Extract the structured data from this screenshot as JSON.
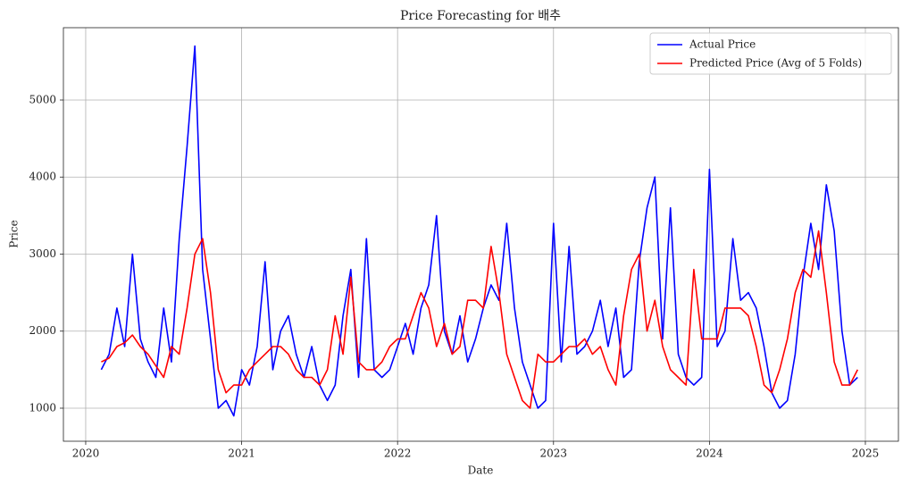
{
  "chart_data": {
    "type": "line",
    "title": "Price Forecasting for 배추",
    "x_label": "Date",
    "y_label": "Price",
    "x": [
      2020.1,
      2020.15,
      2020.2,
      2020.25,
      2020.3,
      2020.35,
      2020.4,
      2020.45,
      2020.5,
      2020.55,
      2020.6,
      2020.65,
      2020.7,
      2020.75,
      2020.8,
      2020.85,
      2020.9,
      2020.95,
      2021.0,
      2021.05,
      2021.1,
      2021.15,
      2021.2,
      2021.25,
      2021.3,
      2021.35,
      2021.4,
      2021.45,
      2021.5,
      2021.55,
      2021.6,
      2021.65,
      2021.7,
      2021.75,
      2021.8,
      2021.85,
      2021.9,
      2021.95,
      2022.0,
      2022.05,
      2022.1,
      2022.15,
      2022.2,
      2022.25,
      2022.3,
      2022.35,
      2022.4,
      2022.45,
      2022.5,
      2022.55,
      2022.6,
      2022.65,
      2022.7,
      2022.75,
      2022.8,
      2022.85,
      2022.9,
      2022.95,
      2023.0,
      2023.05,
      2023.1,
      2023.15,
      2023.2,
      2023.25,
      2023.3,
      2023.35,
      2023.4,
      2023.45,
      2023.5,
      2023.55,
      2023.6,
      2023.65,
      2023.7,
      2023.75,
      2023.8,
      2023.85,
      2023.9,
      2023.95,
      2024.0,
      2024.05,
      2024.1,
      2024.15,
      2024.2,
      2024.25,
      2024.3,
      2024.35,
      2024.4,
      2024.45,
      2024.5,
      2024.55,
      2024.6,
      2024.65,
      2024.7,
      2024.75,
      2024.8,
      2024.85,
      2024.9,
      2024.95
    ],
    "series": [
      {
        "name": "Actual Price",
        "color": "#0000ff",
        "values": [
          1500,
          1700,
          2300,
          1800,
          3000,
          1900,
          1600,
          1400,
          2300,
          1600,
          3200,
          4400,
          5700,
          2800,
          1900,
          1000,
          1100,
          900,
          1500,
          1300,
          1800,
          2900,
          1500,
          2000,
          2200,
          1700,
          1400,
          1800,
          1300,
          1100,
          1300,
          2200,
          2800,
          1400,
          3200,
          1500,
          1400,
          1500,
          1800,
          2100,
          1700,
          2300,
          2600,
          3500,
          2000,
          1700,
          2200,
          1600,
          1900,
          2300,
          2600,
          2400,
          3400,
          2300,
          1600,
          1300,
          1000,
          1100,
          3400,
          1600,
          3100,
          1700,
          1800,
          2000,
          2400,
          1800,
          2300,
          1400,
          1500,
          2900,
          3600,
          4000,
          1900,
          3600,
          1700,
          1400,
          1300,
          1400,
          4100,
          1800,
          2000,
          3200,
          2400,
          2500,
          2300,
          1800,
          1200,
          1000,
          1100,
          1700,
          2700,
          3400,
          2800,
          3900,
          3300,
          2000,
          1300,
          1400
        ]
      },
      {
        "name": "Predicted Price (Avg of 5 Folds)",
        "color": "#ff0000",
        "values": [
          1600,
          1650,
          1800,
          1850,
          1950,
          1800,
          1700,
          1550,
          1400,
          1800,
          1700,
          2300,
          3000,
          3200,
          2500,
          1500,
          1200,
          1300,
          1300,
          1500,
          1600,
          1700,
          1800,
          1800,
          1700,
          1500,
          1400,
          1400,
          1300,
          1500,
          2200,
          1700,
          2700,
          1600,
          1500,
          1500,
          1600,
          1800,
          1900,
          1900,
          2200,
          2500,
          2300,
          1800,
          2100,
          1700,
          1800,
          2400,
          2400,
          2300,
          3100,
          2500,
          1700,
          1400,
          1100,
          1000,
          1700,
          1600,
          1600,
          1700,
          1800,
          1800,
          1900,
          1700,
          1800,
          1500,
          1300,
          2200,
          2800,
          3000,
          2000,
          2400,
          1800,
          1500,
          1400,
          1300,
          2800,
          1900,
          1900,
          1900,
          2300,
          2300,
          2300,
          2200,
          1800,
          1300,
          1200,
          1500,
          1900,
          2500,
          2800,
          2700,
          3300,
          2500,
          1600,
          1300,
          1300,
          1500
        ]
      }
    ],
    "xlim": [
      2019.857,
      2025.212
    ],
    "xticks": [
      2020,
      2021,
      2022,
      2023,
      2024,
      2025
    ],
    "ylim": [
      571,
      5939
    ],
    "yticks": [
      1000,
      2000,
      3000,
      4000,
      5000
    ],
    "grid": true,
    "legend": "upper right"
  }
}
